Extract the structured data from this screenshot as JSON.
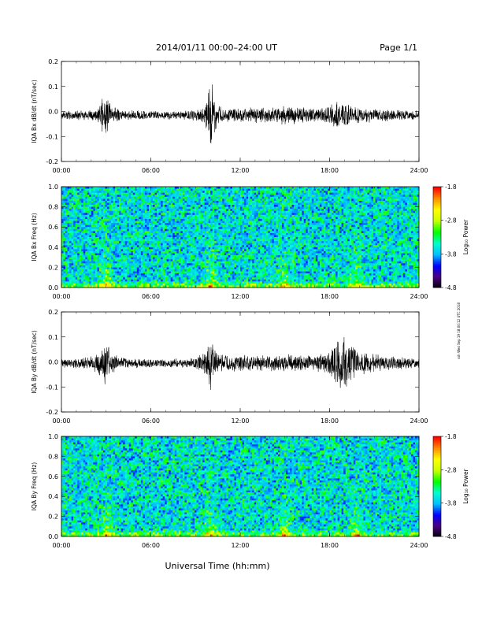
{
  "header": {
    "title": "2014/01/11  00:00–24:00 UT",
    "page_label": "Page 1/1"
  },
  "footer": {
    "xlabel": "Universal Time (hh:mm)"
  },
  "side_note": "ssh Wed Sep 19 18:00:12 UTC 2018",
  "colors": {
    "trace": "#000000",
    "colorbar_stops": [
      "#000000",
      "#4b0082",
      "#0000ff",
      "#00bfff",
      "#00ffcc",
      "#00ff00",
      "#c8ff00",
      "#ffff00",
      "#ff8c00",
      "#ff0000"
    ]
  },
  "chart_data": [
    {
      "type": "line",
      "name": "IQA Bx dB/dt",
      "ylabel": "IQA Bx dB/dt (nT/sec)",
      "x_ticks": [
        "00:00",
        "06:00",
        "12:00",
        "18:00",
        "24:00"
      ],
      "xlim": [
        0,
        24
      ],
      "ylim": [
        -0.2,
        0.2
      ],
      "y_ticks": [
        "0.2",
        "0.1",
        "0.0",
        "-0.1",
        "-0.2"
      ],
      "envelope": {
        "x_hours": [
          0,
          1,
          2,
          2.5,
          2.8,
          3.0,
          3.3,
          4,
          5,
          6,
          7,
          8,
          9,
          9.6,
          9.9,
          10.05,
          10.2,
          10.5,
          11,
          12,
          13,
          14,
          15,
          16,
          17,
          18,
          18.5,
          19,
          19.5,
          20,
          21,
          22,
          23,
          24
        ],
        "amplitude": [
          0.02,
          0.02,
          0.022,
          0.035,
          0.08,
          0.1,
          0.04,
          0.022,
          0.02,
          0.018,
          0.018,
          0.02,
          0.022,
          0.04,
          0.11,
          0.17,
          0.09,
          0.04,
          0.03,
          0.03,
          0.035,
          0.035,
          0.04,
          0.035,
          0.03,
          0.04,
          0.06,
          0.05,
          0.04,
          0.035,
          0.03,
          0.025,
          0.022,
          0.02
        ],
        "offset": -0.015
      }
    },
    {
      "type": "heatmap",
      "name": "IQA Bx Freq",
      "ylabel": "IQA Bx Freq (Hz)",
      "x_ticks": [
        "00:00",
        "06:00",
        "12:00",
        "18:00",
        "24:00"
      ],
      "xlim": [
        0,
        24
      ],
      "ylim": [
        0.0,
        1.0
      ],
      "y_ticks": [
        "1.0",
        "0.8",
        "0.6",
        "0.4",
        "0.2",
        "0.0"
      ],
      "colorbar": {
        "label": "Log₁₀ Power",
        "ticks": [
          "-1.8",
          "-2.8",
          "-3.8",
          "-4.8"
        ],
        "range": [
          -4.8,
          -1.8
        ]
      },
      "hotspots_hours": [
        3.0,
        10.0,
        15.0,
        19.8
      ]
    },
    {
      "type": "line",
      "name": "IQA By dB/dt",
      "ylabel": "IQA By dB/dt (nT/sec)",
      "x_ticks": [
        "00:00",
        "06:00",
        "12:00",
        "18:00",
        "24:00"
      ],
      "xlim": [
        0,
        24
      ],
      "ylim": [
        -0.2,
        0.2
      ],
      "y_ticks": [
        "0.2",
        "0.1",
        "0.0",
        "-0.1",
        "-0.2"
      ],
      "envelope": {
        "x_hours": [
          0,
          1,
          2,
          2.5,
          2.8,
          3.0,
          3.3,
          4,
          5,
          6,
          7,
          8,
          9,
          9.6,
          9.9,
          10.05,
          10.2,
          10.5,
          11,
          12,
          13,
          14,
          15,
          16,
          17,
          18,
          18.5,
          19,
          19.5,
          20,
          21,
          22,
          23,
          24
        ],
        "amplitude": [
          0.02,
          0.022,
          0.03,
          0.05,
          0.09,
          0.1,
          0.05,
          0.025,
          0.02,
          0.018,
          0.018,
          0.02,
          0.025,
          0.05,
          0.1,
          0.14,
          0.08,
          0.04,
          0.035,
          0.035,
          0.035,
          0.035,
          0.04,
          0.035,
          0.03,
          0.06,
          0.1,
          0.11,
          0.08,
          0.05,
          0.04,
          0.03,
          0.025,
          0.022
        ],
        "offset": -0.005
      }
    },
    {
      "type": "heatmap",
      "name": "IQA By Freq",
      "ylabel": "IQA By Freq (Hz)",
      "x_ticks": [
        "00:00",
        "06:00",
        "12:00",
        "18:00",
        "24:00"
      ],
      "xlim": [
        0,
        24
      ],
      "ylim": [
        0.0,
        1.0
      ],
      "y_ticks": [
        "1.0",
        "0.8",
        "0.6",
        "0.4",
        "0.2",
        "0.0"
      ],
      "colorbar": {
        "label": "Log₁₀ Power",
        "ticks": [
          "-1.8",
          "-2.8",
          "-3.8",
          "-4.8"
        ],
        "range": [
          -4.8,
          -1.8
        ]
      },
      "hotspots_hours": [
        3.0,
        10.0,
        15.0,
        19.8
      ]
    }
  ]
}
